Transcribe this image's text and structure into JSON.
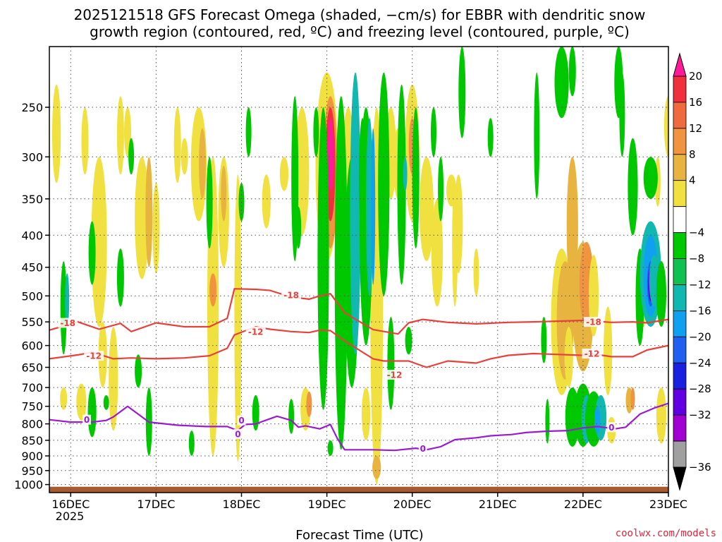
{
  "chart_data": {
    "type": "heatmap",
    "title_line1": "2025121518 GFS Forecast Omega (shaded, −cm/s) for EBBR with dendritic snow",
    "title_line2": "growth region (contoured, red, ºC) and freezing level (contoured, purple, ºC)",
    "xlabel": "Forecast Time (UTC)",
    "credit": "coolwx.com/models",
    "x_ticks": [
      "16DEC",
      "17DEC",
      "18DEC",
      "19DEC",
      "20DEC",
      "21DEC",
      "22DEC",
      "23DEC"
    ],
    "x_year": "2025",
    "y_ticks": [
      250,
      300,
      350,
      400,
      450,
      500,
      550,
      600,
      650,
      700,
      750,
      800,
      850,
      900,
      950,
      1000
    ],
    "y_label_text": [
      "250",
      "300",
      "350",
      "400",
      "450",
      "500",
      "550",
      "600",
      "650",
      "700",
      "750",
      "800",
      "850",
      "900",
      "950",
      "1000"
    ],
    "x_range_hours": [
      -6,
      168
    ],
    "y_range_hpa": [
      200,
      1030
    ],
    "colorbar": {
      "labels": [
        "20",
        "16",
        "12",
        "8",
        "4",
        "−4",
        "−8",
        "−12",
        "−16",
        "−20",
        "−24",
        "−28",
        "−32",
        "−36"
      ],
      "colors": [
        "#ff1a99",
        "#f0303c",
        "#f06a40",
        "#f09440",
        "#e8b440",
        "#f0e040",
        "#ffffff",
        "#00c800",
        "#10c050",
        "#10b8b0",
        "#10a0f0",
        "#2060f0",
        "#1a20e0",
        "#6000e0",
        "#a000d0",
        "#a0a0a0",
        "#000000"
      ]
    },
    "terrain_color": "#a85a2e",
    "dgz_color": "#e8403a",
    "freezing_color": "#9a1bd0",
    "contour_labels": {
      "dgz_18": [
        {
          "t": -0.8,
          "p": 552,
          "text": "-18"
        },
        {
          "t": 62,
          "p": 498,
          "text": "-18"
        },
        {
          "t": 147,
          "p": 550,
          "text": "-18"
        }
      ],
      "dgz_12": [
        {
          "t": 6.5,
          "p": 623,
          "text": "-12"
        },
        {
          "t": 52,
          "p": 570,
          "text": "-12"
        },
        {
          "t": 91,
          "p": 668,
          "text": "-12"
        },
        {
          "t": 146.5,
          "p": 618,
          "text": "-12"
        }
      ],
      "frz_0": [
        {
          "t": 4.5,
          "p": 788,
          "text": "0"
        },
        {
          "t": 48,
          "p": 790,
          "text": "0"
        },
        {
          "t": 47,
          "p": 830,
          "text": "0"
        },
        {
          "t": 99,
          "p": 876,
          "text": "0"
        },
        {
          "t": 152,
          "p": 810,
          "text": "0"
        }
      ]
    },
    "dgz_minus18": {
      "t": [
        -6,
        2,
        8,
        14,
        17,
        24,
        32,
        39,
        44,
        46,
        52,
        56,
        62,
        67,
        70,
        73,
        77,
        85,
        92,
        95,
        99,
        106,
        114,
        123,
        130,
        144,
        152,
        158,
        162,
        168
      ],
      "p": [
        567,
        550,
        565,
        553,
        570,
        552,
        560,
        560,
        543,
        487,
        488,
        490,
        502,
        506,
        500,
        496,
        532,
        566,
        575,
        552,
        545,
        551,
        554,
        551,
        550,
        547,
        551,
        550,
        552,
        545
      ]
    },
    "dgz_minus12": {
      "t": [
        -6,
        2,
        6,
        12,
        17,
        24,
        32,
        39,
        44,
        46,
        52,
        56,
        62,
        67,
        70,
        73,
        77,
        85,
        88,
        95,
        100,
        106,
        114,
        118,
        123,
        130,
        144,
        146,
        152,
        158,
        162,
        168
      ],
      "p": [
        630,
        621,
        615,
        630,
        628,
        630,
        628,
        623,
        606,
        577,
        560,
        565,
        570,
        572,
        567,
        568,
        590,
        630,
        635,
        635,
        650,
        635,
        640,
        630,
        622,
        618,
        622,
        618,
        625,
        625,
        610,
        600
      ]
    },
    "frz_0": {
      "t": [
        -6,
        0,
        6,
        10,
        12,
        16,
        22,
        30,
        38,
        44,
        47,
        49,
        52,
        58,
        62,
        64,
        66,
        70,
        73,
        75,
        77,
        85,
        91,
        97,
        100,
        104,
        108,
        114,
        118,
        124,
        128,
        134,
        140,
        144,
        148,
        153,
        156,
        160,
        164,
        168
      ],
      "p": [
        788,
        795,
        795,
        790,
        780,
        750,
        795,
        804,
        808,
        808,
        820,
        802,
        800,
        778,
        790,
        810,
        806,
        815,
        802,
        845,
        880,
        880,
        882,
        875,
        880,
        870,
        848,
        842,
        836,
        832,
        826,
        822,
        820,
        812,
        808,
        815,
        810,
        772,
        755,
        742
      ]
    }
  }
}
